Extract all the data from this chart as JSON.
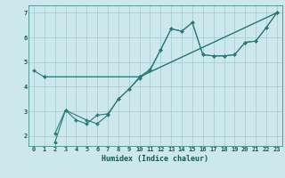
{
  "xlabel": "Humidex (Indice chaleur)",
  "ylabel": "",
  "bg_color": "#cce8ec",
  "grid_color": "#a8cfd4",
  "line_color": "#2a7a7a",
  "xlim": [
    -0.5,
    23.5
  ],
  "ylim": [
    1.6,
    7.3
  ],
  "xticks": [
    0,
    1,
    2,
    3,
    4,
    5,
    6,
    7,
    8,
    9,
    10,
    11,
    12,
    13,
    14,
    15,
    16,
    17,
    18,
    19,
    20,
    21,
    22,
    23
  ],
  "yticks": [
    2,
    3,
    4,
    5,
    6,
    7
  ],
  "lines": [
    {
      "x": [
        0,
        1,
        10,
        23
      ],
      "y": [
        4.65,
        4.4,
        4.4,
        7.0
      ]
    },
    {
      "x": [
        2,
        3,
        4,
        5,
        6,
        7,
        8,
        9,
        10,
        11,
        12,
        13,
        14,
        15,
        16,
        17,
        18,
        19,
        20,
        21,
        22,
        23
      ],
      "y": [
        1.75,
        3.05,
        2.65,
        2.5,
        2.85,
        2.9,
        3.5,
        3.9,
        4.4,
        4.7,
        5.5,
        6.35,
        6.25,
        6.6,
        5.3,
        5.25,
        5.25,
        5.3,
        5.8,
        5.85,
        6.4,
        7.0
      ]
    },
    {
      "x": [
        2,
        3,
        5,
        6,
        7,
        8,
        9,
        10,
        11,
        12,
        13,
        14,
        15,
        16,
        17,
        18,
        19,
        20,
        21,
        22,
        23
      ],
      "y": [
        2.1,
        3.05,
        2.65,
        2.5,
        2.85,
        3.5,
        3.9,
        4.35,
        4.65,
        5.5,
        6.35,
        6.25,
        6.6,
        5.3,
        5.25,
        5.25,
        5.3,
        5.8,
        5.85,
        6.4,
        7.0
      ]
    },
    {
      "x": [
        1,
        10,
        23
      ],
      "y": [
        4.4,
        4.4,
        7.0
      ]
    }
  ]
}
